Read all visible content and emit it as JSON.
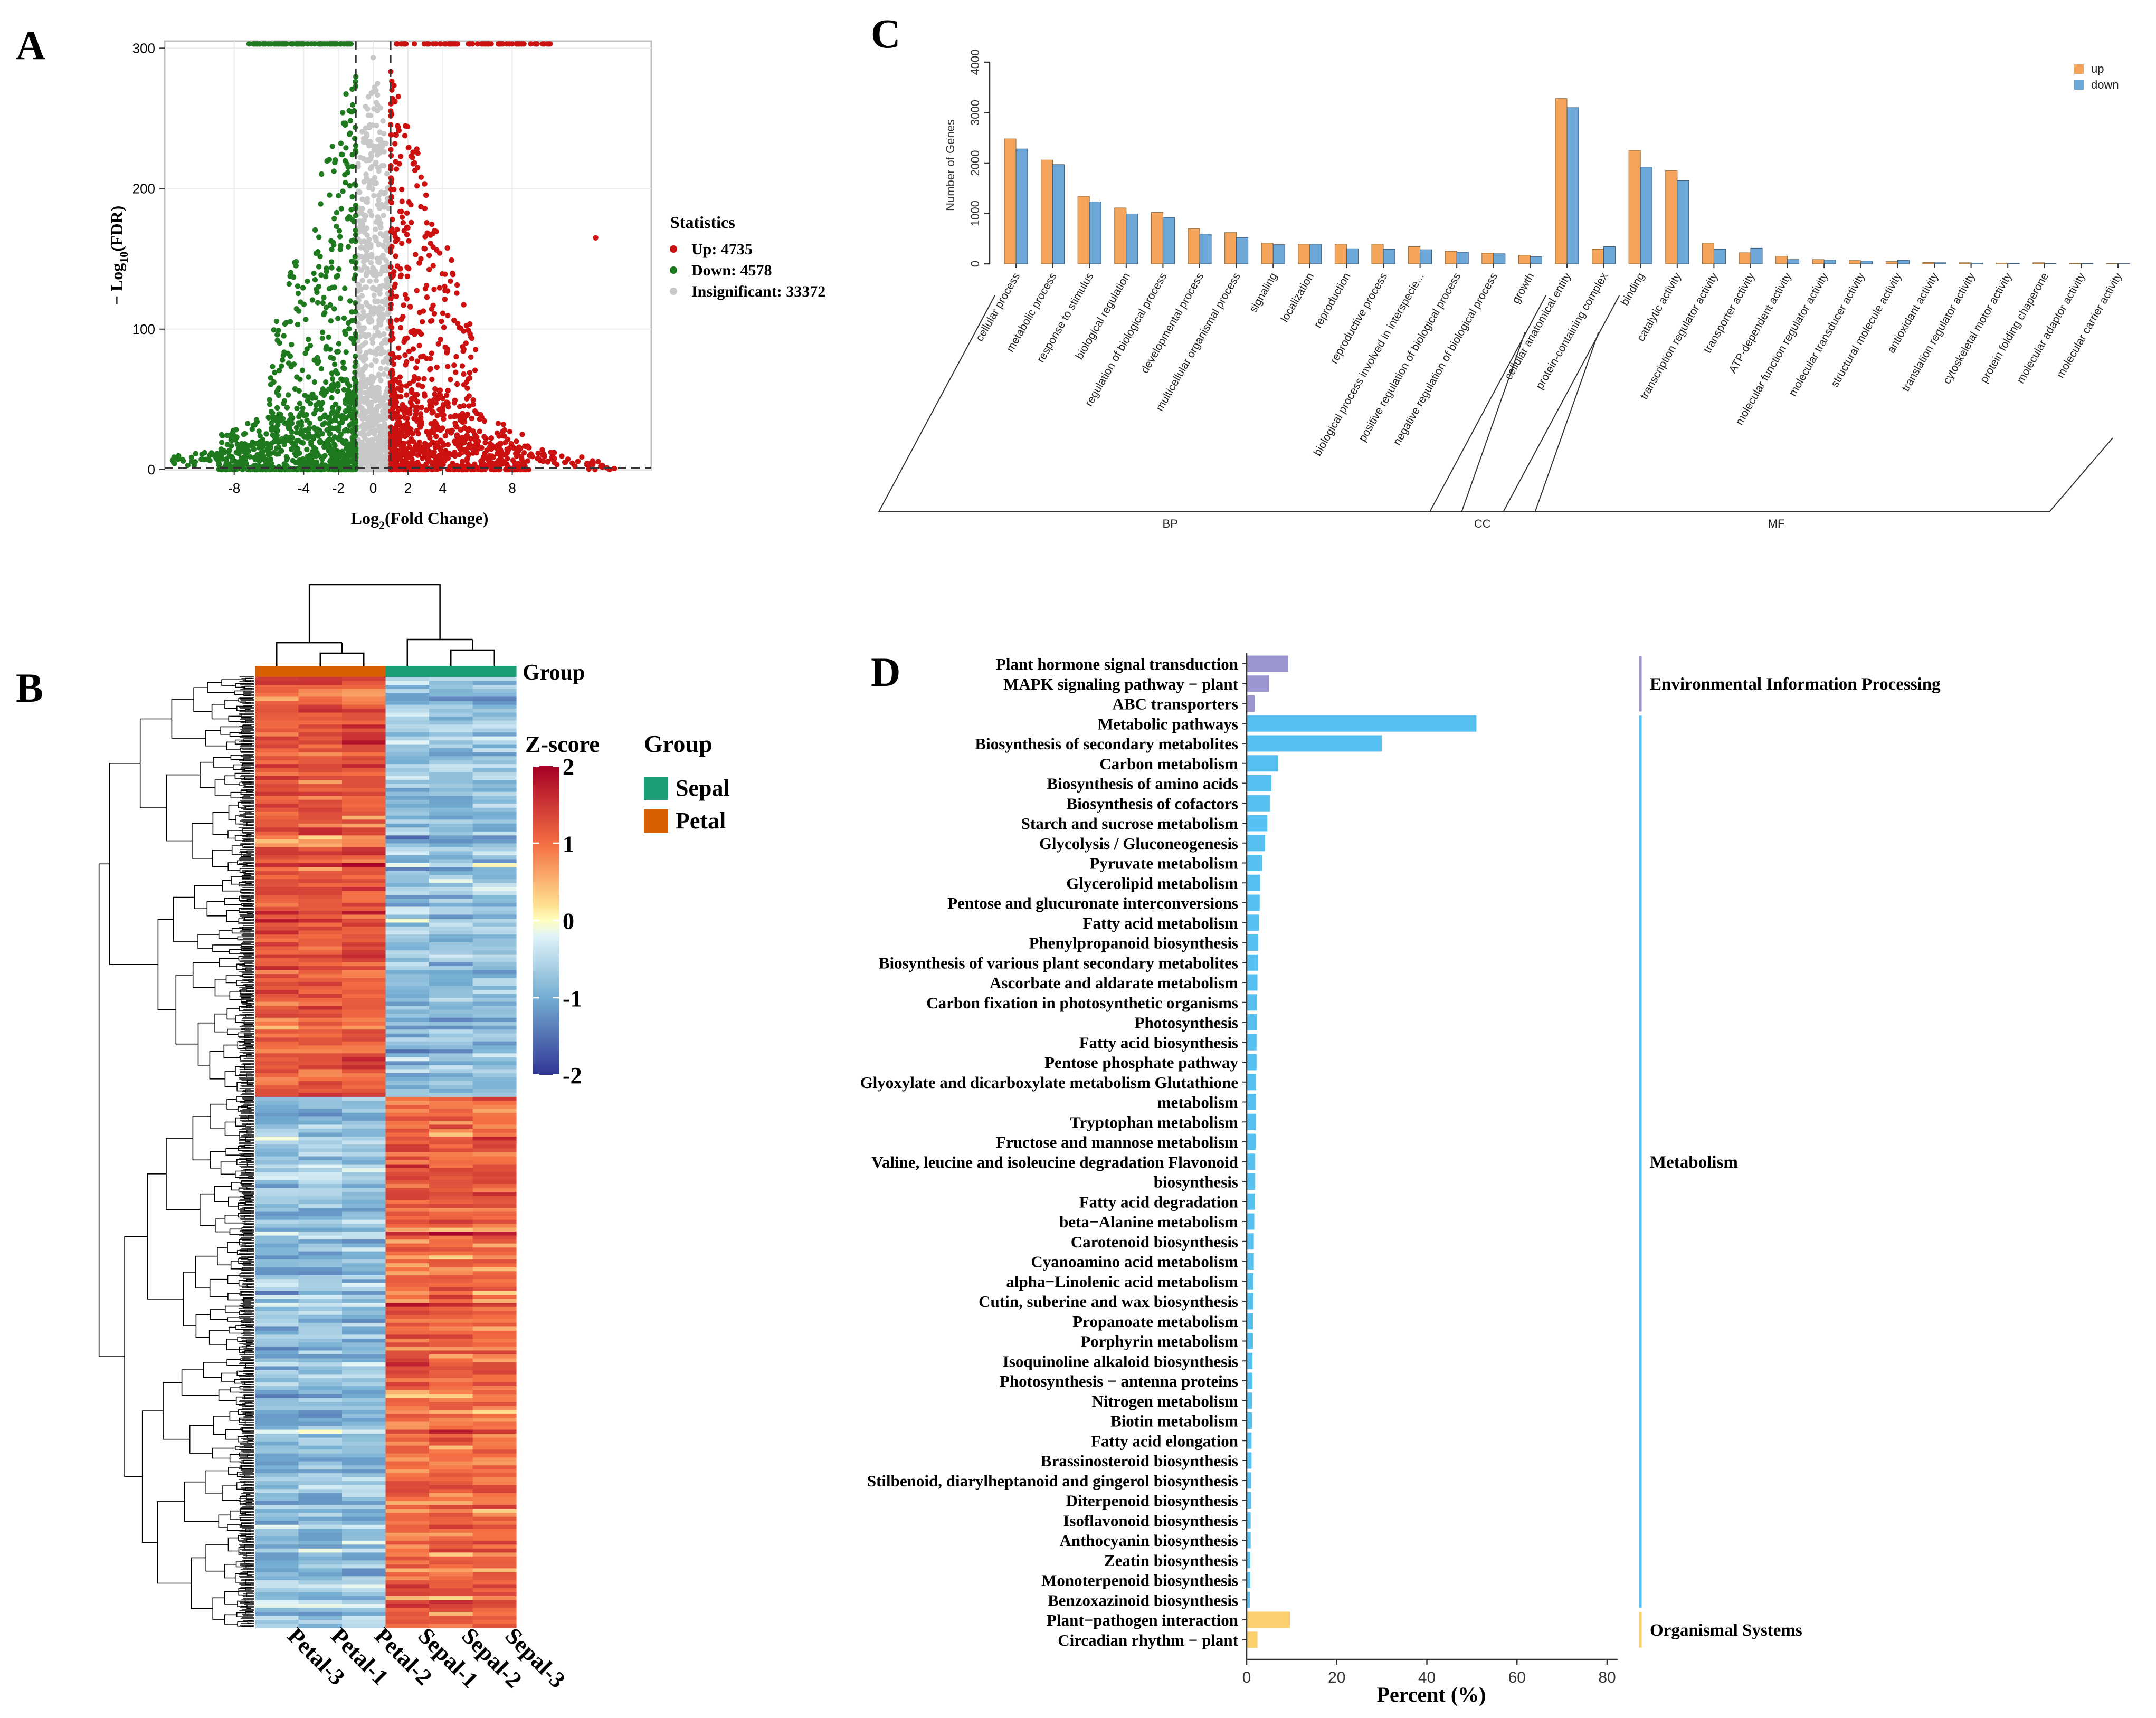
{
  "panels": {
    "a": {
      "letter": "A"
    },
    "b": {
      "letter": "B"
    },
    "c": {
      "letter": "C"
    },
    "d": {
      "letter": "D"
    }
  },
  "colors": {
    "up": "#cc1111",
    "down": "#1f7a1f",
    "insig": "#c8c8c8",
    "go_up": "#f5a55b",
    "go_down": "#6ea8d8",
    "sepal": "#1b9e77",
    "petal": "#d95f02",
    "env": "#9b95d0",
    "metab": "#56c0f0",
    "org": "#fbcf6e"
  },
  "chart_data": [
    {
      "id": "volcano",
      "type": "scatter",
      "title": "",
      "xlabel": "Log2(Fold Change)",
      "ylabel": "−Log10(FDR)",
      "xlabel_base": "Log",
      "xlabel_sub": "2",
      "xlabel_rest": "(Fold Change)",
      "ylabel_pre": "− Log",
      "ylabel_sub": "10",
      "ylabel_rest": "(FDR)",
      "xlim": [
        -12,
        16
      ],
      "ylim": [
        0,
        305
      ],
      "xticks": [
        -8,
        -4,
        -2,
        0,
        2,
        4,
        8
      ],
      "yticks": [
        0,
        100,
        200,
        300
      ],
      "thresholds": {
        "log2fc": [
          -1,
          1
        ],
        "neg_log10_fdr": 1.3
      },
      "legend": {
        "title": "Statistics",
        "position": "right",
        "entries": [
          {
            "label": "Up: 4735",
            "series": "up"
          },
          {
            "label": "Down: 4578",
            "series": "down"
          },
          {
            "label": "Insignificant: 33372",
            "series": "insig"
          }
        ]
      },
      "series": [
        {
          "name": "up",
          "count": 4735
        },
        {
          "name": "down",
          "count": 4578
        },
        {
          "name": "insig",
          "count": 33372
        }
      ]
    },
    {
      "id": "go",
      "type": "bar",
      "title": "",
      "ylabel": "Number of Genes",
      "ylim": [
        0,
        4000
      ],
      "yticks": [
        0,
        1000,
        2000,
        3000,
        4000
      ],
      "legend": [
        {
          "label": "up",
          "series": "up"
        },
        {
          "label": "down",
          "series": "down"
        }
      ],
      "categories": [
        "cellular process",
        "metabolic process",
        "response to stimulus",
        "biological regulation",
        "regulation of biological process",
        "developmental process",
        "multicellular organismal process",
        "signaling",
        "localization",
        "reproduction",
        "reproductive process",
        "biological process involved in interspecie...",
        "positive regulation of biological process",
        "negative regulation of biological process",
        "growth",
        "cellular anatomical entity",
        "protein-containing complex",
        "binding",
        "catalytic activity",
        "transcription regulator activity",
        "transporter activity",
        "ATP-dependent activity",
        "molecular function regulator activity",
        "molecular transducer activity",
        "structural molecule activity",
        "antioxidant activity",
        "translation regulator activity",
        "cytoskeletal motor activity",
        "protein folding chaperone",
        "molecular adaptor activity",
        "molecular carrier activity"
      ],
      "series": [
        {
          "name": "up",
          "values": [
            2480,
            2060,
            1340,
            1110,
            1020,
            700,
            620,
            410,
            390,
            390,
            390,
            340,
            250,
            210,
            170,
            3280,
            290,
            2250,
            1850,
            410,
            220,
            150,
            85,
            65,
            45,
            28,
            22,
            16,
            22,
            12,
            6
          ]
        },
        {
          "name": "down",
          "values": [
            2280,
            1970,
            1230,
            990,
            920,
            590,
            520,
            380,
            390,
            300,
            290,
            280,
            230,
            200,
            140,
            3100,
            340,
            1920,
            1650,
            290,
            310,
            85,
            75,
            55,
            70,
            22,
            16,
            12,
            10,
            7,
            4
          ]
        }
      ],
      "groups": [
        {
          "label": "BP",
          "start": 0,
          "end": 14
        },
        {
          "label": "CC",
          "start": 15,
          "end": 16
        },
        {
          "label": "MF",
          "start": 17,
          "end": 30
        }
      ]
    },
    {
      "id": "heatmap",
      "type": "heatmap",
      "title": "",
      "columns": [
        "Petal-3",
        "Petal-1",
        "Petal-2",
        "Sepal-1",
        "Sepal-2",
        "Sepal-3"
      ],
      "column_groups": [
        "Petal",
        "Petal",
        "Petal",
        "Sepal",
        "Sepal",
        "Sepal"
      ],
      "group_annotation_label": "Group",
      "legend_group_title": "Group",
      "legend_groups": [
        "Sepal",
        "Petal"
      ],
      "colorbar": {
        "title": "Z-score",
        "range": [
          -2,
          2
        ],
        "ticks": [
          2,
          1,
          0,
          -1,
          -2
        ]
      },
      "blocks": [
        {
          "description": "Petal-high cluster",
          "fraction": 0.44,
          "petal_z": 1.2,
          "sepal_z": -0.8
        },
        {
          "description": "Sepal-high cluster",
          "fraction": 0.56,
          "petal_z": -0.8,
          "sepal_z": 1.1
        }
      ]
    },
    {
      "id": "kegg",
      "type": "bar",
      "orientation": "horizontal",
      "title": "",
      "xlabel": "Percent (%)",
      "xlim": [
        0,
        80
      ],
      "xticks": [
        0,
        20,
        40,
        60,
        80
      ],
      "categories": [
        "Plant hormone signal transduction",
        "MAPK signaling pathway − plant",
        "ABC transporters",
        "Metabolic pathways",
        "Biosynthesis of secondary metabolites",
        "Carbon metabolism",
        "Biosynthesis of amino acids",
        "Biosynthesis of cofactors",
        "Starch and sucrose metabolism",
        "Glycolysis / Gluconeogenesis",
        "Pyruvate metabolism",
        "Glycerolipid metabolism",
        "Pentose and glucuronate interconversions",
        "Fatty acid metabolism",
        "Phenylpropanoid biosynthesis",
        "Biosynthesis of various plant secondary metabolites",
        "Ascorbate and aldarate metabolism",
        "Carbon fixation in photosynthetic organisms",
        "Photosynthesis",
        "Fatty acid biosynthesis",
        "Pentose phosphate pathway",
        "Glyoxylate and dicarboxylate metabolism Glutathione",
        "metabolism",
        "Tryptophan metabolism",
        "Fructose and mannose metabolism",
        "Valine, leucine and isoleucine degradation Flavonoid",
        "biosynthesis",
        "Fatty acid degradation",
        "beta−Alanine metabolism",
        "Carotenoid biosynthesis",
        "Cyanoamino acid metabolism",
        "alpha−Linolenic acid metabolism",
        "Cutin, suberine and wax biosynthesis",
        "Propanoate metabolism",
        "Porphyrin metabolism",
        "Isoquinoline alkaloid biosynthesis",
        "Photosynthesis − antenna proteins",
        "Nitrogen metabolism",
        "Biotin metabolism",
        "Fatty acid elongation",
        "Brassinosteroid biosynthesis",
        "Stilbenoid, diarylheptanoid and gingerol biosynthesis",
        "Diterpenoid biosynthesis",
        "Isoflavonoid biosynthesis",
        "Anthocyanin biosynthesis",
        "Zeatin biosynthesis",
        "Monoterpenoid biosynthesis",
        "Benzoxazinoid biosynthesis",
        "Plant−pathogen interaction",
        "Circadian rhythm − plant"
      ],
      "values": [
        9.2,
        5.0,
        1.8,
        51.0,
        30.0,
        7.0,
        5.5,
        5.2,
        4.6,
        4.1,
        3.4,
        3.0,
        2.9,
        2.7,
        2.6,
        2.5,
        2.4,
        2.3,
        2.3,
        2.2,
        2.2,
        2.1,
        2.1,
        2.0,
        2.0,
        1.9,
        1.9,
        1.8,
        1.7,
        1.6,
        1.6,
        1.5,
        1.5,
        1.4,
        1.4,
        1.3,
        1.3,
        1.2,
        1.2,
        1.1,
        1.1,
        1.0,
        1.0,
        0.9,
        0.9,
        0.8,
        0.8,
        0.7,
        9.6,
        2.4
      ],
      "category_class": [
        "env",
        "env",
        "env",
        "metab",
        "metab",
        "metab",
        "metab",
        "metab",
        "metab",
        "metab",
        "metab",
        "metab",
        "metab",
        "metab",
        "metab",
        "metab",
        "metab",
        "metab",
        "metab",
        "metab",
        "metab",
        "metab",
        "metab",
        "metab",
        "metab",
        "metab",
        "metab",
        "metab",
        "metab",
        "metab",
        "metab",
        "metab",
        "metab",
        "metab",
        "metab",
        "metab",
        "metab",
        "metab",
        "metab",
        "metab",
        "metab",
        "metab",
        "metab",
        "metab",
        "metab",
        "metab",
        "metab",
        "metab",
        "org",
        "org"
      ],
      "groups": [
        {
          "label": "Environmental Information Processing",
          "class": "env",
          "start": 0,
          "end": 2
        },
        {
          "label": "Metabolism",
          "class": "metab",
          "start": 3,
          "end": 47
        },
        {
          "label": "Organismal Systems",
          "class": "org",
          "start": 48,
          "end": 49
        }
      ]
    }
  ]
}
